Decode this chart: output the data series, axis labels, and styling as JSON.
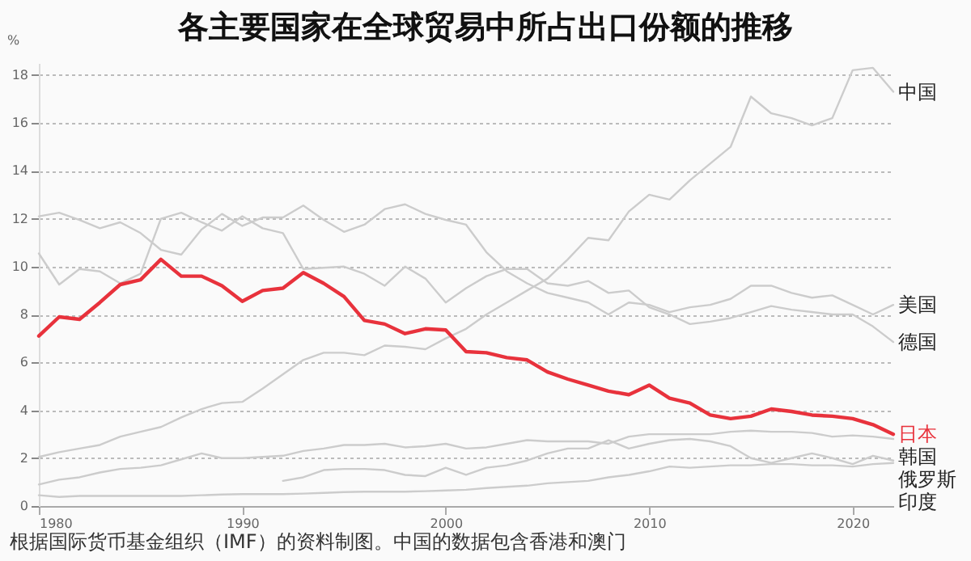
{
  "chart_data": {
    "type": "line",
    "title": "各主要国家在全球贸易中所占出口份额的推移",
    "ylabel": "%",
    "annotations": [
      "根据国际货币基金组织（IMF）的资料制图。中国的数据包含香港和澳门"
    ],
    "x": [
      1980,
      1981,
      1982,
      1983,
      1984,
      1985,
      1986,
      1987,
      1988,
      1989,
      1990,
      1991,
      1992,
      1993,
      1994,
      1995,
      1996,
      1997,
      1998,
      1999,
      2000,
      2001,
      2002,
      2003,
      2004,
      2005,
      2006,
      2007,
      2008,
      2009,
      2010,
      2011,
      2012,
      2013,
      2014,
      2015,
      2016,
      2017,
      2018,
      2019,
      2020,
      2021,
      2022
    ],
    "xlim": [
      1980,
      2022
    ],
    "xticks": [
      1980,
      1990,
      2000,
      2010,
      2020
    ],
    "ylim": [
      0,
      18.5
    ],
    "yticks": [
      0,
      2,
      4,
      6,
      8,
      10,
      12,
      14,
      16,
      18
    ],
    "grid": "y",
    "series": [
      {
        "name": "中国",
        "color": "#cccccc",
        "values": [
          2.05,
          2.25,
          2.4,
          2.55,
          2.9,
          3.1,
          3.3,
          3.7,
          4.05,
          4.3,
          4.35,
          4.9,
          5.5,
          6.1,
          6.4,
          6.4,
          6.3,
          6.7,
          6.65,
          6.55,
          7.0,
          7.4,
          8.0,
          8.5,
          9.0,
          9.5,
          10.3,
          11.2,
          11.1,
          12.3,
          13.0,
          12.8,
          13.6,
          14.3,
          15.0,
          17.1,
          16.4,
          16.2,
          15.9,
          16.2,
          18.2,
          18.3,
          17.3
        ]
      },
      {
        "name": "美国",
        "color": "#cccccc",
        "values": [
          12.1,
          12.25,
          11.95,
          11.6,
          11.85,
          11.4,
          10.7,
          10.5,
          11.55,
          12.2,
          11.7,
          12.05,
          12.05,
          12.55,
          11.95,
          11.45,
          11.75,
          12.4,
          12.6,
          12.2,
          11.95,
          11.75,
          10.6,
          9.8,
          9.3,
          8.9,
          8.7,
          8.5,
          8.0,
          8.5,
          8.4,
          8.1,
          8.3,
          8.4,
          8.65,
          9.2,
          9.2,
          8.9,
          8.7,
          8.8,
          8.4,
          8.0,
          8.4
        ]
      },
      {
        "name": "德国",
        "color": "#cccccc",
        "values": [
          10.55,
          9.25,
          9.9,
          9.8,
          9.3,
          9.7,
          12.0,
          12.25,
          11.85,
          11.5,
          12.1,
          11.6,
          11.4,
          9.9,
          9.95,
          10.0,
          9.7,
          9.2,
          10.0,
          9.5,
          8.5,
          9.1,
          9.6,
          9.9,
          9.9,
          9.3,
          9.2,
          9.4,
          8.9,
          9.0,
          8.3,
          8.0,
          7.6,
          7.7,
          7.85,
          8.1,
          8.35,
          8.2,
          8.1,
          8.0,
          8.0,
          7.5,
          6.85
        ]
      },
      {
        "name": "日本",
        "color": "#e8323c",
        "values": [
          7.1,
          7.9,
          7.8,
          8.5,
          9.25,
          9.45,
          10.3,
          9.6,
          9.6,
          9.2,
          8.55,
          9.0,
          9.1,
          9.75,
          9.3,
          8.75,
          7.75,
          7.6,
          7.2,
          7.4,
          7.35,
          6.45,
          6.4,
          6.2,
          6.1,
          5.6,
          5.3,
          5.05,
          4.8,
          4.65,
          5.05,
          4.5,
          4.3,
          3.8,
          3.65,
          3.75,
          4.05,
          3.95,
          3.8,
          3.75,
          3.65,
          3.4,
          3.0
        ]
      },
      {
        "name": "韩国",
        "color": "#cccccc",
        "values": [
          0.9,
          1.1,
          1.2,
          1.4,
          1.55,
          1.6,
          1.7,
          1.95,
          2.2,
          2.0,
          2.0,
          2.05,
          2.1,
          2.3,
          2.4,
          2.55,
          2.55,
          2.6,
          2.45,
          2.5,
          2.6,
          2.4,
          2.45,
          2.6,
          2.75,
          2.7,
          2.7,
          2.7,
          2.6,
          2.9,
          3.0,
          3.0,
          3.0,
          3.0,
          3.1,
          3.15,
          3.1,
          3.1,
          3.05,
          2.9,
          2.95,
          2.9,
          2.8
        ]
      },
      {
        "name": "俄罗斯",
        "color": "#cccccc",
        "values": [
          null,
          null,
          null,
          null,
          null,
          null,
          null,
          null,
          null,
          null,
          null,
          null,
          1.05,
          1.2,
          1.5,
          1.55,
          1.55,
          1.5,
          1.3,
          1.25,
          1.6,
          1.3,
          1.6,
          1.7,
          1.9,
          2.2,
          2.4,
          2.4,
          2.75,
          2.4,
          2.6,
          2.75,
          2.8,
          2.7,
          2.5,
          2.0,
          1.8,
          2.0,
          2.2,
          2.0,
          1.75,
          2.1,
          1.9
        ]
      },
      {
        "name": "印度",
        "color": "#cccccc",
        "values": [
          0.45,
          0.38,
          0.42,
          0.42,
          0.42,
          0.42,
          0.42,
          0.42,
          0.45,
          0.48,
          0.5,
          0.5,
          0.5,
          0.52,
          0.55,
          0.58,
          0.6,
          0.6,
          0.6,
          0.62,
          0.65,
          0.68,
          0.75,
          0.8,
          0.85,
          0.95,
          1.0,
          1.05,
          1.2,
          1.3,
          1.45,
          1.65,
          1.6,
          1.65,
          1.7,
          1.7,
          1.75,
          1.75,
          1.7,
          1.7,
          1.65,
          1.75,
          1.8
        ]
      }
    ]
  }
}
